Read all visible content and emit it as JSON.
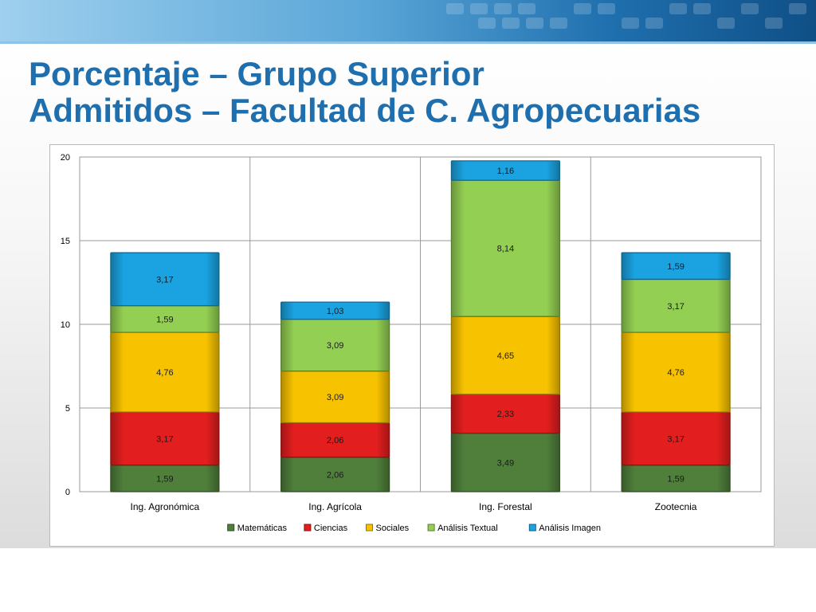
{
  "slide": {
    "title_line1": "Porcentaje – Grupo Superior",
    "title_line2": "Admitidos – Facultad de C. Agropecuarias"
  },
  "chart_data": {
    "type": "bar",
    "stacked": true,
    "title": "",
    "xlabel": "",
    "ylabel": "",
    "ylim": [
      0,
      20
    ],
    "yticks": [
      0,
      5,
      10,
      15,
      20
    ],
    "grid": true,
    "legend_position": "bottom",
    "categories": [
      "Ing. Agronómica",
      "Ing. Agrícola",
      "Ing. Forestal",
      "Zootecnia"
    ],
    "series": [
      {
        "name": "Matemáticas",
        "color": "#4f7f3a",
        "values": [
          1.59,
          2.06,
          3.49,
          1.59
        ],
        "labels": [
          "1,59",
          "2,06",
          "3,49",
          "1,59"
        ]
      },
      {
        "name": "Ciencias",
        "color": "#e31e1e",
        "values": [
          3.17,
          2.06,
          2.33,
          3.17
        ],
        "labels": [
          "3,17",
          "2,06",
          "2,33",
          "3,17"
        ]
      },
      {
        "name": "Sociales",
        "color": "#f7c300",
        "values": [
          4.76,
          3.09,
          4.65,
          4.76
        ],
        "labels": [
          "4,76",
          "3,09",
          "4,65",
          "4,76"
        ]
      },
      {
        "name": "Análisis Textual",
        "color": "#93cf52",
        "values": [
          1.59,
          3.09,
          8.14,
          3.17
        ],
        "labels": [
          "1,59",
          "3,09",
          "8,14",
          "3,17"
        ]
      },
      {
        "name": "Análisis Imagen",
        "color": "#1aa3e0",
        "values": [
          3.17,
          1.03,
          1.16,
          1.59
        ],
        "labels": [
          "3,17",
          "1,03",
          "1,16",
          "1,59"
        ]
      }
    ]
  }
}
